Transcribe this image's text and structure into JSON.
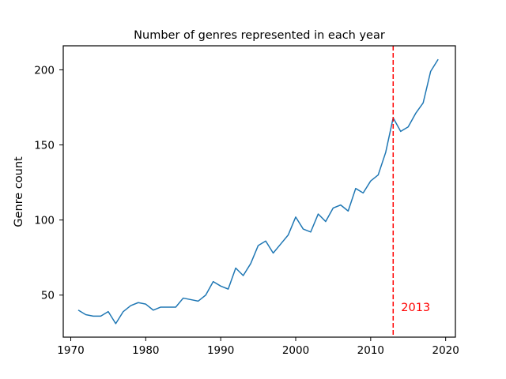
{
  "chart_data": {
    "type": "line",
    "title": "Number of genres represented in each year",
    "xlabel": "",
    "ylabel": "Genre count",
    "xlim": [
      1969,
      2021.3
    ],
    "ylim": [
      22,
      216
    ],
    "xticks": [
      1970,
      1980,
      1990,
      2000,
      2010,
      2020
    ],
    "yticks": [
      50,
      100,
      150,
      200
    ],
    "grid": false,
    "line_color": "#1f77b4",
    "series": [
      {
        "x": [
          1971,
          1972,
          1973,
          1974,
          1975,
          1976,
          1977,
          1978,
          1979,
          1980,
          1981,
          1982,
          1983,
          1984,
          1985,
          1986,
          1987,
          1988,
          1989,
          1990,
          1991,
          1992,
          1993,
          1994,
          1995,
          1996,
          1997,
          1998,
          1999,
          2000,
          2001,
          2002,
          2003,
          2004,
          2005,
          2006,
          2007,
          2008,
          2009,
          2010,
          2011,
          2012,
          2013,
          2014,
          2015,
          2016,
          2017,
          2018,
          2019
        ],
        "y": [
          40,
          37,
          36,
          36,
          39,
          31,
          39,
          43,
          45,
          44,
          40,
          42,
          42,
          42,
          48,
          47,
          46,
          50,
          59,
          56,
          54,
          68,
          63,
          71,
          83,
          86,
          78,
          84,
          90,
          102,
          94,
          92,
          104,
          99,
          108,
          110,
          106,
          121,
          118,
          126,
          130,
          145,
          168,
          159,
          162,
          171,
          178,
          199,
          207
        ]
      }
    ],
    "annotation": {
      "type": "vline",
      "x": 2013,
      "color": "#ff0000",
      "linestyle": "dashed",
      "label": "2013",
      "label_y": 42
    }
  }
}
